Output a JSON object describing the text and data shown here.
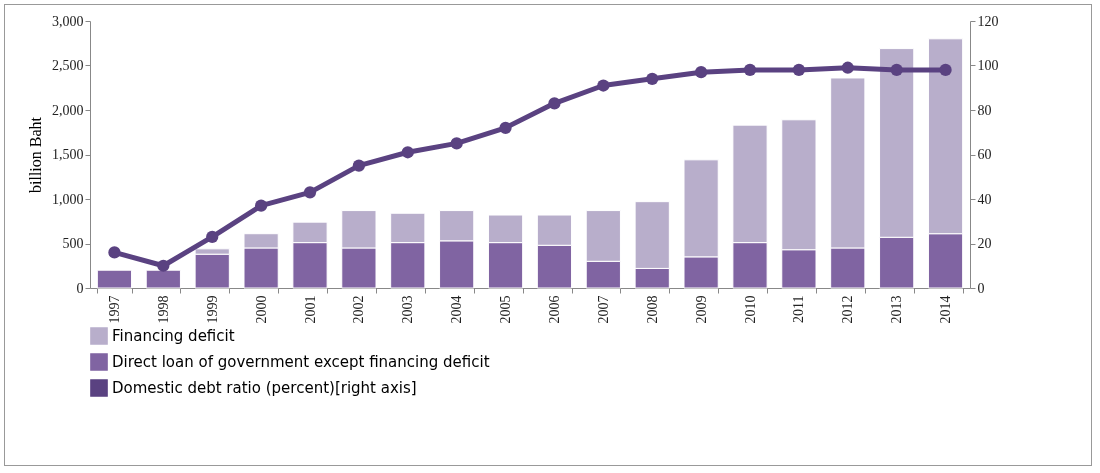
{
  "chart_data": {
    "type": "bar",
    "stacked": true,
    "ylabel": "billion Baht",
    "legend": "bottom",
    "grid": false,
    "marker": "circle",
    "categories": [
      "1997",
      "1998",
      "1999",
      "2000",
      "2001",
      "2002",
      "2003",
      "2004",
      "2005",
      "2006",
      "2007",
      "2008",
      "2009",
      "2010",
      "2011",
      "2012",
      "2013",
      "2014"
    ],
    "series": [
      {
        "name": "Direct loan of government except financing deficit",
        "color": "#8064a2",
        "values": [
          200,
          200,
          380,
          450,
          510,
          450,
          510,
          530,
          510,
          480,
          300,
          220,
          350,
          510,
          430,
          450,
          570,
          610
        ]
      },
      {
        "name": "Financing deficit",
        "color": "#b8aecb",
        "values": [
          null,
          null,
          60,
          160,
          230,
          420,
          330,
          340,
          310,
          340,
          570,
          750,
          1090,
          1320,
          1460,
          1910,
          2120,
          2190
        ]
      },
      {
        "name": "Domestic debt ratio (percent)[right axis]",
        "type": "line",
        "axis": "y2",
        "color": "#5a4281",
        "values": [
          16,
          10,
          23,
          37,
          43,
          55,
          61,
          65,
          72,
          83,
          91,
          94,
          97,
          98,
          98,
          99,
          98,
          98
        ]
      }
    ],
    "ylim": [
      0,
      3000
    ],
    "yticks": [
      0,
      500,
      {
        "value": 1000,
        "label": "1,000"
      },
      {
        "value": 1500,
        "label": "1,500"
      },
      {
        "value": 2000,
        "label": "2,000"
      },
      {
        "value": 2500,
        "label": "2,500"
      },
      {
        "value": 3000,
        "label": "3,000"
      }
    ],
    "y2lim": [
      0,
      120
    ],
    "y2ticks": [
      0,
      20,
      40,
      60,
      80,
      100,
      120
    ]
  }
}
